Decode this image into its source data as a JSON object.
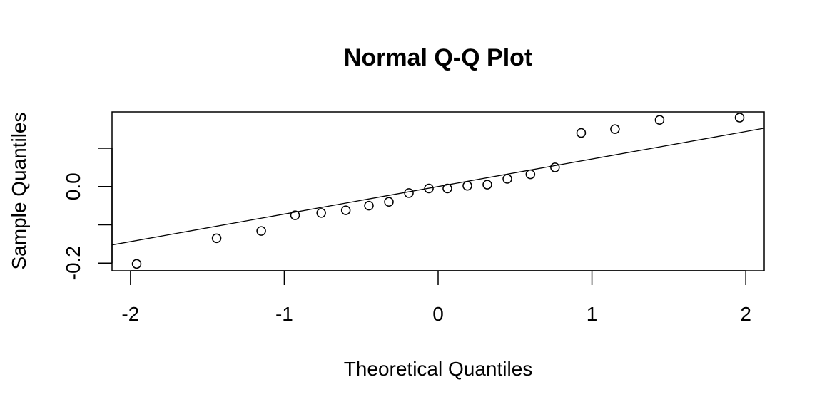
{
  "chart_data": {
    "type": "scatter",
    "title": "Normal Q-Q Plot",
    "xlabel": "Theoretical Quantiles",
    "ylabel": "Sample Quantiles",
    "xlim": [
      -2.12,
      2.12
    ],
    "ylim": [
      -0.22,
      0.195
    ],
    "x_ticks": [
      -2,
      -1,
      0,
      1,
      2
    ],
    "x_tick_labels": [
      "-2",
      "-1",
      "0",
      "1",
      "2"
    ],
    "y_ticks": [
      -0.2,
      -0.1,
      0.0,
      0.1
    ],
    "y_tick_labels": [
      "-0.2",
      "",
      "0.0",
      ""
    ],
    "grid": false,
    "legend": "none",
    "reference_line": {
      "intercept": 0.0,
      "slope": 0.0719
    },
    "points": [
      {
        "x": -1.96,
        "y": -0.202
      },
      {
        "x": -1.44,
        "y": -0.135
      },
      {
        "x": -1.15,
        "y": -0.116
      },
      {
        "x": -0.93,
        "y": -0.075
      },
      {
        "x": -0.76,
        "y": -0.069
      },
      {
        "x": -0.6,
        "y": -0.062
      },
      {
        "x": -0.45,
        "y": -0.05
      },
      {
        "x": -0.32,
        "y": -0.04
      },
      {
        "x": -0.19,
        "y": -0.017
      },
      {
        "x": -0.06,
        "y": -0.005
      },
      {
        "x": 0.06,
        "y": -0.005
      },
      {
        "x": 0.19,
        "y": 0.002
      },
      {
        "x": 0.32,
        "y": 0.005
      },
      {
        "x": 0.45,
        "y": 0.02
      },
      {
        "x": 0.6,
        "y": 0.032
      },
      {
        "x": 0.76,
        "y": 0.05
      },
      {
        "x": 0.93,
        "y": 0.14
      },
      {
        "x": 1.15,
        "y": 0.15
      },
      {
        "x": 1.44,
        "y": 0.174
      },
      {
        "x": 1.96,
        "y": 0.18
      }
    ],
    "colors": {
      "points": "#000000",
      "line": "#000000",
      "axes": "#000000",
      "background": "#ffffff"
    }
  }
}
